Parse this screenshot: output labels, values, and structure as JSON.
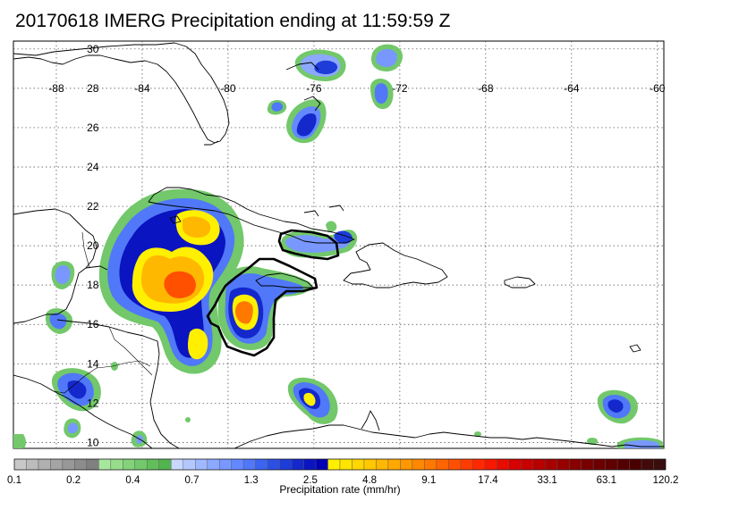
{
  "title": "20170618 IMERG Precipitation ending at 11:59:59 Z",
  "map": {
    "lon_labels": [
      "-88",
      "-84",
      "-80",
      "-76",
      "-72",
      "-68",
      "-64",
      "-60"
    ],
    "lat_labels": [
      "30",
      "28",
      "26",
      "24",
      "22",
      "20",
      "18",
      "16",
      "14",
      "12",
      "10"
    ]
  },
  "colorbar": {
    "unit_label": "Precipitation rate (mm/hr)",
    "tick_labels": [
      "0.1",
      "0.2",
      "0.4",
      "0.7",
      "1.3",
      "2.5",
      "4.8",
      "9.1",
      "17.4",
      "33.1",
      "63.1",
      "120.2"
    ],
    "colors": [
      "#c8c8c8",
      "#bcbcbc",
      "#b0b0b0",
      "#a4a4a4",
      "#989898",
      "#8c8c8c",
      "#808080",
      "#a8e6a0",
      "#96dc8c",
      "#84d27a",
      "#72c86a",
      "#62be5c",
      "#52b44e",
      "#c8d8ff",
      "#b4c8ff",
      "#a0b8ff",
      "#8ca8ff",
      "#7898ff",
      "#6488ff",
      "#5078f8",
      "#3c64f0",
      "#2c50e4",
      "#1e3cd8",
      "#1428cc",
      "#0a14c0",
      "#0000b4",
      "#fff000",
      "#ffe400",
      "#ffd600",
      "#ffc800",
      "#ffb800",
      "#ffa800",
      "#ff9800",
      "#ff8800",
      "#ff7800",
      "#ff6400",
      "#ff5000",
      "#ff3c00",
      "#ff2800",
      "#f81800",
      "#e80c00",
      "#d80000",
      "#c80000",
      "#b80000",
      "#a80000",
      "#980000",
      "#880000",
      "#780000",
      "#6c0000",
      "#600000",
      "#540000",
      "#4a0000",
      "#420a0a",
      "#3a0e0e"
    ]
  }
}
